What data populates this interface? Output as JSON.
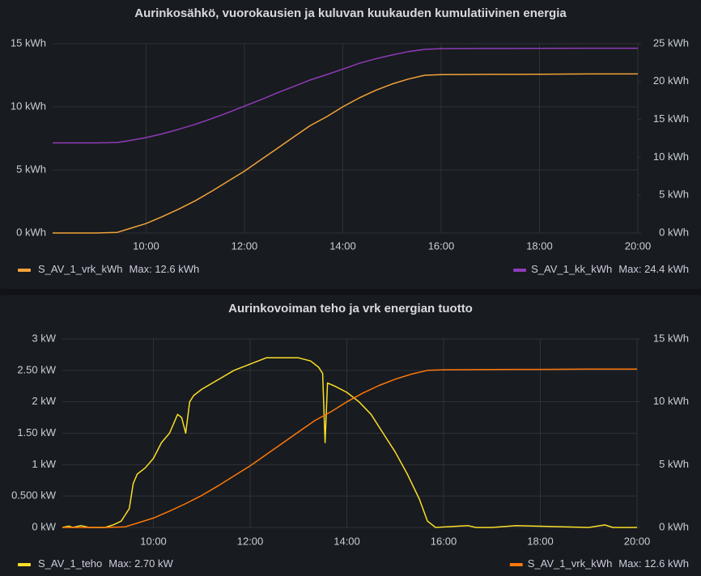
{
  "chart_data": [
    {
      "type": "line",
      "title": "Aurinkosähkö, vuorokausien ja kuluvan kuukauden kumulatiivinen energia",
      "xlim": [
        "08:06",
        "20:00"
      ],
      "xticks": [
        "10:00",
        "12:00",
        "14:00",
        "16:00",
        "18:00",
        "20:00"
      ],
      "ylim": [
        0,
        15
      ],
      "yticks": [
        {
          "value": 0,
          "label": "0 kWh"
        },
        {
          "value": 5,
          "label": "5 kWh"
        },
        {
          "value": 10,
          "label": "10 kWh"
        },
        {
          "value": 15,
          "label": "15 kWh"
        }
      ],
      "y2lim": [
        0,
        25
      ],
      "y2ticks": [
        {
          "value": 0,
          "label": "0 kWh"
        },
        {
          "value": 5,
          "label": "5 kWh"
        },
        {
          "value": 10,
          "label": "10 kWh"
        },
        {
          "value": 15,
          "label": "15 kWh"
        },
        {
          "value": 20,
          "label": "20 kWh"
        },
        {
          "value": 25,
          "label": "25 kWh"
        }
      ],
      "grid": true,
      "legend": "bottom",
      "series": [
        {
          "name": "S_AV_1_vrk_kWh",
          "stat_label": "Max: 12.6 kWh",
          "color": "#f2a33a",
          "axis": "y",
          "x": [
            "08:06",
            "09:00",
            "09:25",
            "09:40",
            "10:00",
            "10:20",
            "10:40",
            "11:00",
            "11:20",
            "11:40",
            "12:00",
            "12:20",
            "12:40",
            "13:00",
            "13:20",
            "13:40",
            "14:00",
            "14:20",
            "14:40",
            "15:00",
            "15:20",
            "15:40",
            "16:00",
            "17:00",
            "18:00",
            "19:00",
            "20:00"
          ],
          "values": [
            0,
            0,
            0.05,
            0.35,
            0.75,
            1.3,
            1.9,
            2.55,
            3.3,
            4.1,
            4.9,
            5.8,
            6.7,
            7.6,
            8.5,
            9.2,
            10,
            10.7,
            11.3,
            11.8,
            12.2,
            12.5,
            12.55,
            12.57,
            12.58,
            12.6,
            12.6
          ]
        },
        {
          "name": "S_AV_1_kk_kWh",
          "stat_label": "Max: 24.4 kWh",
          "color": "#8f3bb8",
          "axis": "y2",
          "x": [
            "08:06",
            "09:00",
            "09:25",
            "09:40",
            "10:00",
            "10:20",
            "10:40",
            "11:00",
            "11:20",
            "11:40",
            "12:00",
            "12:20",
            "12:40",
            "13:00",
            "13:20",
            "13:40",
            "14:00",
            "14:20",
            "14:40",
            "15:00",
            "15:20",
            "15:40",
            "16:00",
            "17:00",
            "18:00",
            "19:00",
            "20:00"
          ],
          "values": [
            11.9,
            11.9,
            11.95,
            12.2,
            12.6,
            13.1,
            13.7,
            14.35,
            15.1,
            15.9,
            16.75,
            17.6,
            18.5,
            19.35,
            20.2,
            20.9,
            21.65,
            22.4,
            23,
            23.5,
            23.95,
            24.25,
            24.35,
            24.37,
            24.38,
            24.4,
            24.4
          ]
        }
      ]
    },
    {
      "type": "line",
      "title": "Aurinkovoiman teho ja vrk energian tuotto",
      "xlim": [
        "08:07",
        "20:00"
      ],
      "xticks": [
        "10:00",
        "12:00",
        "14:00",
        "16:00",
        "18:00",
        "20:00"
      ],
      "ylim": [
        0,
        3
      ],
      "yticks": [
        {
          "value": 0,
          "label": "0 kW"
        },
        {
          "value": 0.5,
          "label": "0.500 kW"
        },
        {
          "value": 1,
          "label": "1 kW"
        },
        {
          "value": 1.5,
          "label": "1.50 kW"
        },
        {
          "value": 2,
          "label": "2 kW"
        },
        {
          "value": 2.5,
          "label": "2.50 kW"
        },
        {
          "value": 3,
          "label": "3 kW"
        }
      ],
      "y2lim": [
        0,
        15
      ],
      "y2ticks": [
        {
          "value": 0,
          "label": "0 kWh"
        },
        {
          "value": 5,
          "label": "5 kWh"
        },
        {
          "value": 10,
          "label": "10 kWh"
        },
        {
          "value": 15,
          "label": "15 kWh"
        }
      ],
      "grid": true,
      "legend": "bottom",
      "series": [
        {
          "name": "S_AV_1_teho",
          "stat_label": "Max: 2.70 kW",
          "color": "#fade2a",
          "axis": "y",
          "x": [
            "08:07",
            "08:15",
            "08:20",
            "08:30",
            "08:40",
            "09:00",
            "09:10",
            "09:20",
            "09:25",
            "09:30",
            "09:35",
            "09:40",
            "09:50",
            "10:00",
            "10:10",
            "10:20",
            "10:30",
            "10:35",
            "10:40",
            "10:45",
            "10:50",
            "11:00",
            "11:20",
            "11:40",
            "12:00",
            "12:20",
            "12:40",
            "13:00",
            "13:15",
            "13:25",
            "13:30",
            "13:33",
            "13:36",
            "13:45",
            "14:00",
            "14:15",
            "14:30",
            "14:45",
            "15:00",
            "15:15",
            "15:30",
            "15:40",
            "15:50",
            "16:30",
            "16:40",
            "17:00",
            "17:30",
            "19:00",
            "19:20",
            "19:30",
            "20:00"
          ],
          "values": [
            0,
            0.02,
            0,
            0.03,
            0,
            0,
            0.04,
            0.1,
            0.2,
            0.3,
            0.7,
            0.85,
            0.95,
            1.1,
            1.35,
            1.5,
            1.8,
            1.75,
            1.5,
            2.0,
            2.1,
            2.2,
            2.35,
            2.5,
            2.6,
            2.7,
            2.7,
            2.7,
            2.65,
            2.55,
            2.45,
            1.35,
            2.3,
            2.25,
            2.15,
            2.0,
            1.8,
            1.5,
            1.2,
            0.85,
            0.45,
            0.1,
            0,
            0.03,
            0,
            0,
            0.03,
            0,
            0.04,
            0,
            0
          ]
        },
        {
          "name": "S_AV_1_vrk_kWh",
          "stat_label": "Max: 12.6 kWh",
          "color": "#ff780a",
          "axis": "y2",
          "x": [
            "08:07",
            "09:00",
            "09:25",
            "09:40",
            "10:00",
            "10:20",
            "10:40",
            "11:00",
            "11:20",
            "11:40",
            "12:00",
            "12:20",
            "12:40",
            "13:00",
            "13:20",
            "13:40",
            "14:00",
            "14:20",
            "14:40",
            "15:00",
            "15:20",
            "15:40",
            "16:00",
            "17:00",
            "18:00",
            "19:00",
            "20:00"
          ],
          "values": [
            0,
            0,
            0.05,
            0.35,
            0.75,
            1.3,
            1.9,
            2.55,
            3.3,
            4.1,
            4.9,
            5.8,
            6.7,
            7.6,
            8.5,
            9.2,
            10,
            10.7,
            11.3,
            11.8,
            12.2,
            12.5,
            12.55,
            12.57,
            12.58,
            12.6,
            12.6
          ]
        }
      ]
    }
  ]
}
